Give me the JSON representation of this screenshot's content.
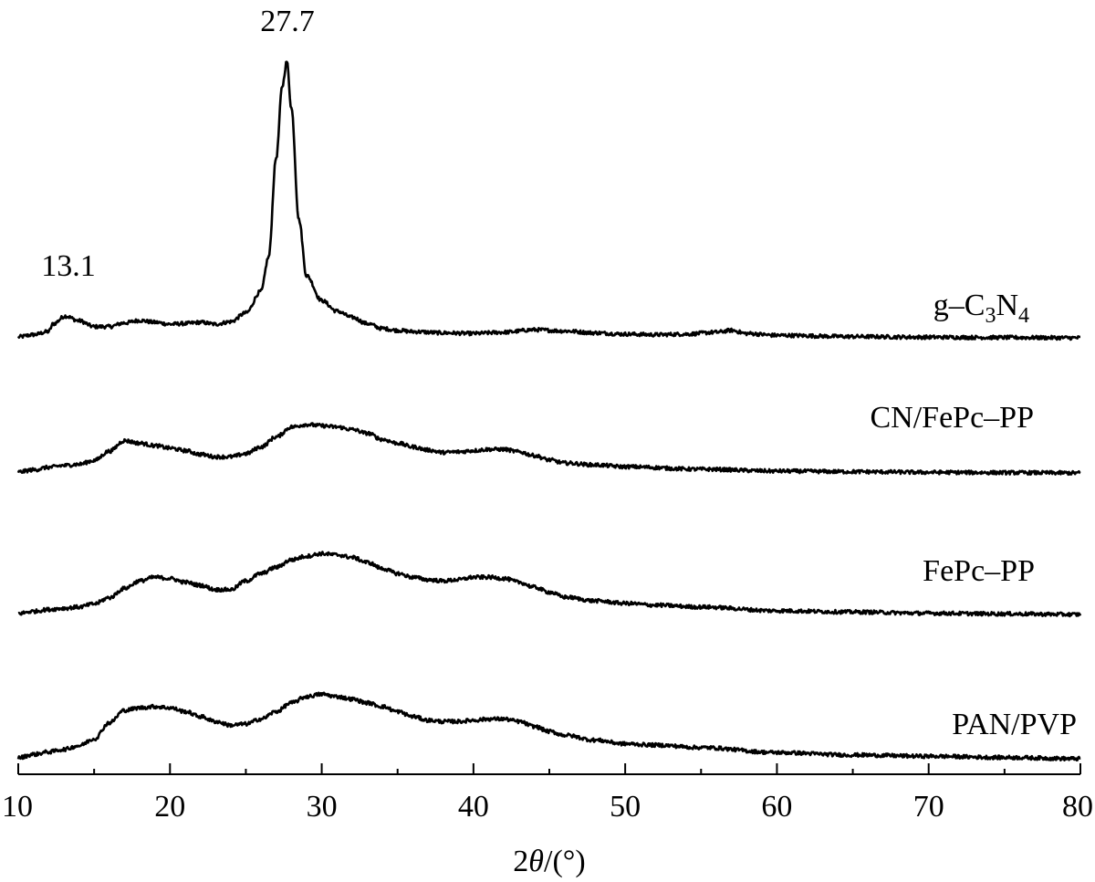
{
  "chart_data": {
    "type": "line",
    "title": "",
    "xlabel_parts": {
      "pre": "2",
      "italic": "θ",
      "post": "/(°)"
    },
    "ylabel": "",
    "xlim": [
      10,
      80
    ],
    "xticks": [
      10,
      20,
      30,
      40,
      50,
      60,
      70,
      80
    ],
    "yaxis_shown": false,
    "grid": false,
    "legend": "inline labels at right of each curve",
    "line_color": "#000000",
    "y_note": "relative intensity in arbitrary units, curves stacked vertically",
    "series": [
      {
        "label_parts": [
          "g–C",
          "3",
          "N",
          "4"
        ],
        "baseline_offset": 0,
        "points": [
          [
            10,
            0.3
          ],
          [
            11,
            1.0
          ],
          [
            12,
            2.0
          ],
          [
            12.3,
            4.5
          ],
          [
            13.1,
            7.0
          ],
          [
            14,
            5.5
          ],
          [
            15,
            3.6
          ],
          [
            16,
            3.6
          ],
          [
            17,
            4.8
          ],
          [
            18,
            5.6
          ],
          [
            19,
            5.0
          ],
          [
            20,
            4.4
          ],
          [
            21,
            4.6
          ],
          [
            22,
            5.0
          ],
          [
            23,
            4.4
          ],
          [
            24,
            5.2
          ],
          [
            25,
            8.0
          ],
          [
            26,
            15.0
          ],
          [
            26.5,
            26.0
          ],
          [
            27,
            58.0
          ],
          [
            27.4,
            81.0
          ],
          [
            27.7,
            89.0
          ],
          [
            28,
            74.0
          ],
          [
            28.5,
            38.0
          ],
          [
            29,
            20.0
          ],
          [
            30,
            12.0
          ],
          [
            31,
            8.6
          ],
          [
            32,
            6.6
          ],
          [
            33,
            4.6
          ],
          [
            34,
            3.0
          ],
          [
            35,
            2.4
          ],
          [
            36,
            2.0
          ],
          [
            38,
            1.6
          ],
          [
            40,
            1.4
          ],
          [
            42,
            1.8
          ],
          [
            44,
            2.6
          ],
          [
            46,
            2.2
          ],
          [
            48,
            1.6
          ],
          [
            50,
            1.2
          ],
          [
            52,
            1.0
          ],
          [
            54,
            1.2
          ],
          [
            56,
            1.8
          ],
          [
            57,
            2.4
          ],
          [
            58,
            1.4
          ],
          [
            60,
            0.8
          ],
          [
            65,
            0.4
          ],
          [
            70,
            0.2
          ],
          [
            75,
            0.1
          ],
          [
            80,
            0
          ]
        ]
      },
      {
        "label": "CN/FePc–PP",
        "baseline_offset": 0,
        "points": [
          [
            10,
            0.3
          ],
          [
            11,
            1.0
          ],
          [
            12,
            1.8
          ],
          [
            13,
            2.4
          ],
          [
            14,
            2.8
          ],
          [
            15,
            4.0
          ],
          [
            16,
            7.0
          ],
          [
            17,
            10.4
          ],
          [
            18,
            9.6
          ],
          [
            19,
            8.8
          ],
          [
            20,
            8.0
          ],
          [
            21,
            7.2
          ],
          [
            22,
            6.0
          ],
          [
            23,
            5.2
          ],
          [
            24,
            5.2
          ],
          [
            25,
            6.2
          ],
          [
            26,
            8.4
          ],
          [
            27,
            11.6
          ],
          [
            28,
            14.8
          ],
          [
            29,
            15.6
          ],
          [
            30,
            15.2
          ],
          [
            31,
            14.8
          ],
          [
            32,
            14.0
          ],
          [
            33,
            12.8
          ],
          [
            34,
            10.8
          ],
          [
            35,
            9.6
          ],
          [
            36,
            8.4
          ],
          [
            37,
            7.4
          ],
          [
            38,
            6.6
          ],
          [
            39,
            6.8
          ],
          [
            40,
            7.2
          ],
          [
            41,
            7.6
          ],
          [
            42,
            7.6
          ],
          [
            43,
            6.8
          ],
          [
            44,
            5.6
          ],
          [
            45,
            4.2
          ],
          [
            46,
            3.2
          ],
          [
            48,
            2.6
          ],
          [
            50,
            2.0
          ],
          [
            55,
            1.2
          ],
          [
            60,
            0.6
          ],
          [
            65,
            0.4
          ],
          [
            70,
            0.2
          ],
          [
            75,
            0.1
          ],
          [
            80,
            0
          ]
        ]
      },
      {
        "label": "FePc–PP",
        "baseline_offset": 0,
        "points": [
          [
            10,
            0.3
          ],
          [
            11,
            1.0
          ],
          [
            12,
            1.6
          ],
          [
            13,
            2.0
          ],
          [
            14,
            2.4
          ],
          [
            15,
            3.4
          ],
          [
            16,
            5.4
          ],
          [
            17,
            8.4
          ],
          [
            18,
            10.8
          ],
          [
            19,
            12.0
          ],
          [
            20,
            11.6
          ],
          [
            21,
            10.4
          ],
          [
            22,
            9.4
          ],
          [
            23,
            8.0
          ],
          [
            24,
            8.0
          ],
          [
            25,
            10.8
          ],
          [
            26,
            13.2
          ],
          [
            27,
            15.2
          ],
          [
            28,
            17.6
          ],
          [
            29,
            18.8
          ],
          [
            30,
            19.6
          ],
          [
            31,
            19.2
          ],
          [
            32,
            18.4
          ],
          [
            33,
            16.8
          ],
          [
            34,
            14.8
          ],
          [
            35,
            13.2
          ],
          [
            36,
            12.0
          ],
          [
            37,
            11.2
          ],
          [
            38,
            10.8
          ],
          [
            39,
            11.2
          ],
          [
            40,
            12.0
          ],
          [
            41,
            12.0
          ],
          [
            42,
            11.6
          ],
          [
            43,
            10.4
          ],
          [
            44,
            8.8
          ],
          [
            45,
            7.2
          ],
          [
            46,
            5.6
          ],
          [
            48,
            4.4
          ],
          [
            50,
            3.6
          ],
          [
            52,
            3.0
          ],
          [
            55,
            2.4
          ],
          [
            60,
            1.2
          ],
          [
            65,
            0.8
          ],
          [
            70,
            0.4
          ],
          [
            75,
            0.2
          ],
          [
            80,
            0
          ]
        ]
      },
      {
        "label": "PAN/PVP",
        "baseline_offset": 0,
        "points": [
          [
            10,
            0.3
          ],
          [
            11,
            1.4
          ],
          [
            12,
            2.2
          ],
          [
            13,
            3.0
          ],
          [
            14,
            4.2
          ],
          [
            15,
            6.4
          ],
          [
            16,
            11.6
          ],
          [
            17,
            15.6
          ],
          [
            18,
            16.4
          ],
          [
            19,
            16.8
          ],
          [
            20,
            16.4
          ],
          [
            21,
            15.2
          ],
          [
            22,
            13.6
          ],
          [
            23,
            12.0
          ],
          [
            24,
            10.8
          ],
          [
            25,
            11.2
          ],
          [
            26,
            12.8
          ],
          [
            27,
            15.2
          ],
          [
            28,
            18.0
          ],
          [
            29,
            20.0
          ],
          [
            30,
            20.8
          ],
          [
            31,
            20.0
          ],
          [
            32,
            19.2
          ],
          [
            33,
            18.0
          ],
          [
            34,
            16.8
          ],
          [
            35,
            15.2
          ],
          [
            36,
            13.6
          ],
          [
            37,
            12.4
          ],
          [
            38,
            12.0
          ],
          [
            39,
            12.0
          ],
          [
            40,
            12.4
          ],
          [
            41,
            12.8
          ],
          [
            42,
            12.8
          ],
          [
            43,
            12.0
          ],
          [
            44,
            10.4
          ],
          [
            45,
            8.8
          ],
          [
            46,
            7.6
          ],
          [
            48,
            6.0
          ],
          [
            50,
            4.8
          ],
          [
            52,
            4.4
          ],
          [
            55,
            3.6
          ],
          [
            60,
            2.0
          ],
          [
            65,
            1.2
          ],
          [
            70,
            0.8
          ],
          [
            75,
            0.4
          ],
          [
            80,
            0
          ]
        ]
      }
    ],
    "annotations": [
      {
        "text": "27.7",
        "x": 27.7,
        "series_index": 0
      },
      {
        "text": "13.1",
        "x": 13.1,
        "series_index": 0
      }
    ]
  }
}
